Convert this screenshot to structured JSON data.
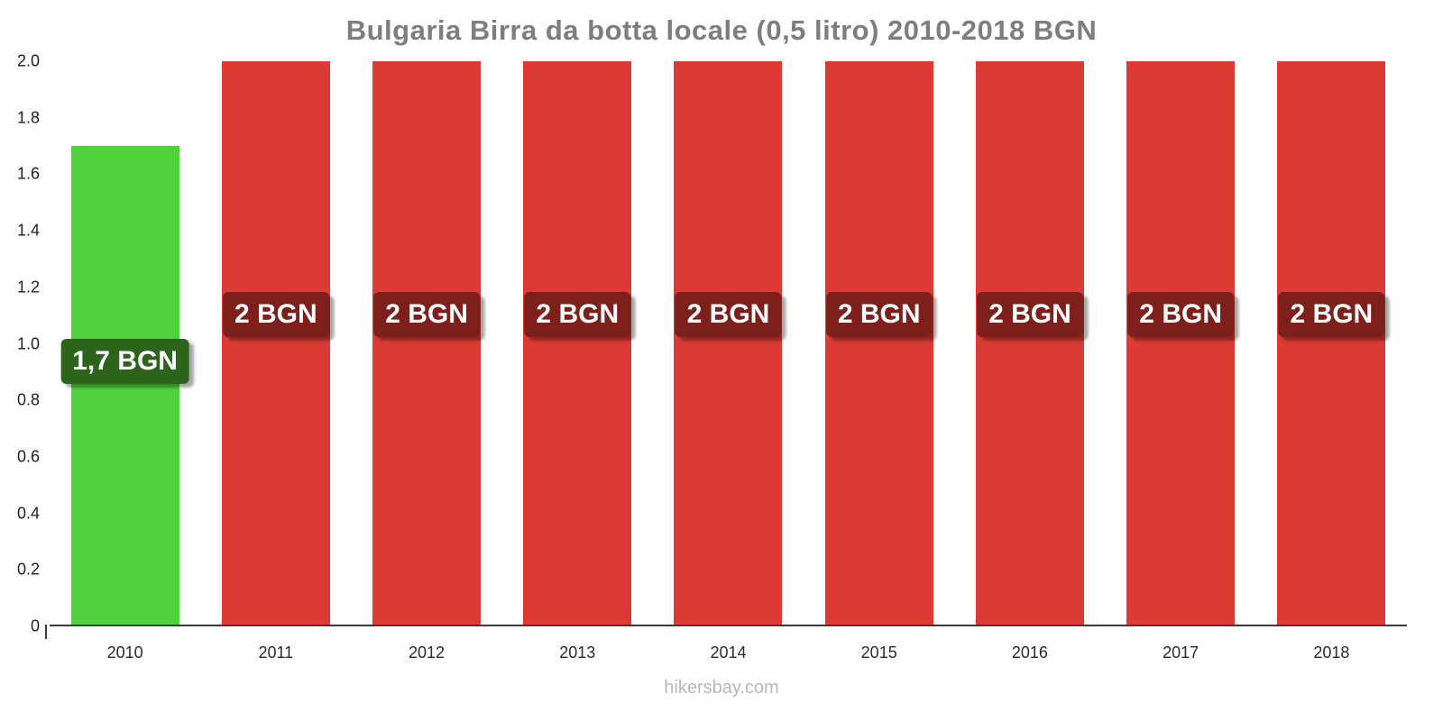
{
  "title": "Bulgaria Birra da botta locale (0,5 litro) 2010-2018 BGN",
  "footer": "hikersbay.com",
  "colors": {
    "highlight_bar": "#50d23c",
    "default_bar": "#db3b34",
    "highlight_label_bg": "#2c641c",
    "default_label_bg": "#7d201b",
    "title_text": "#7e7e7e",
    "axis_text": "#1f1f1f"
  },
  "chart_data": {
    "type": "bar",
    "title": "Bulgaria Birra da botta locale (0,5 litro) 2010-2018 BGN",
    "categories": [
      "2010",
      "2011",
      "2012",
      "2013",
      "2014",
      "2015",
      "2016",
      "2017",
      "2018"
    ],
    "values": [
      1.7,
      2,
      2,
      2,
      2,
      2,
      2,
      2,
      2
    ],
    "bar_labels": [
      "1,7 BGN",
      "2 BGN",
      "2 BGN",
      "2 BGN",
      "2 BGN",
      "2 BGN",
      "2 BGN",
      "2 BGN",
      "2 BGN"
    ],
    "bar_colors": [
      "#50d23c",
      "#db3b34",
      "#db3b34",
      "#db3b34",
      "#db3b34",
      "#db3b34",
      "#db3b34",
      "#db3b34",
      "#db3b34"
    ],
    "label_bg_colors": [
      "#2c641c",
      "#7d201b",
      "#7d201b",
      "#7d201b",
      "#7d201b",
      "#7d201b",
      "#7d201b",
      "#7d201b",
      "#7d201b"
    ],
    "xlabel": "",
    "ylabel": "",
    "ylim": [
      0,
      2
    ],
    "yticks": [
      0,
      0.2,
      0.4,
      0.6,
      0.8,
      1.0,
      1.2,
      1.4,
      1.6,
      1.8,
      2.0
    ],
    "ytick_labels": [
      "0",
      "0.2",
      "0.4",
      "0.6",
      "0.8",
      "1.0",
      "1.2",
      "1.4",
      "1.6",
      "1.8",
      "2.0"
    ],
    "grid": false,
    "legend": false
  }
}
